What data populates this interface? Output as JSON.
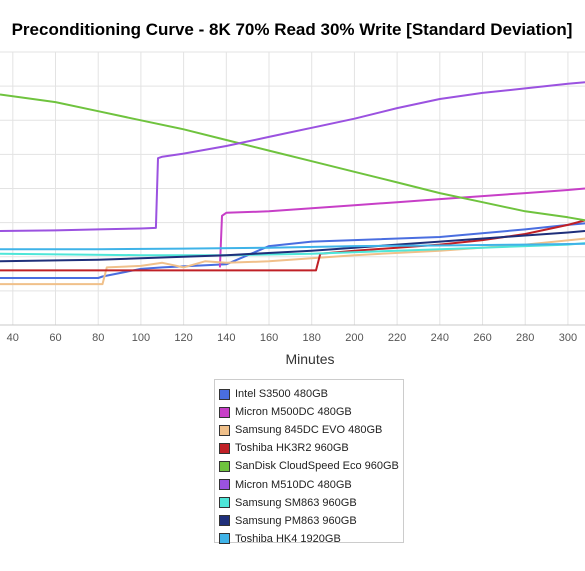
{
  "chart_data": {
    "type": "line",
    "title": "Preconditioning Curve - 8K 70% Read 30% Write [Standard Deviation]",
    "xlabel": "Minutes",
    "ylabel": "",
    "x_ticks": [
      "40",
      "60",
      "80",
      "100",
      "120",
      "140",
      "160",
      "180",
      "200",
      "220",
      "240",
      "260",
      "280",
      "300"
    ],
    "xlim": [
      34,
      308
    ],
    "ylim": [
      0,
      9
    ],
    "grid": true,
    "legend_position": "bottom-center",
    "series": [
      {
        "name": "Intel S3500 480GB",
        "color": "#4a6ee0",
        "x": [
          34,
          80,
          82,
          100,
          110,
          140,
          150,
          160,
          180,
          200,
          240,
          280,
          300,
          308
        ],
        "y": [
          1.55,
          1.55,
          1.6,
          1.85,
          1.9,
          2.0,
          2.3,
          2.6,
          2.75,
          2.8,
          2.9,
          3.15,
          3.3,
          3.35
        ]
      },
      {
        "name": "Micron M500DC 480GB",
        "color": "#c73fc7",
        "x": [
          137,
          138,
          140,
          160,
          180,
          200,
          220,
          240,
          260,
          280,
          300,
          308
        ],
        "y": [
          1.9,
          3.6,
          3.7,
          3.75,
          3.85,
          3.95,
          4.05,
          4.15,
          4.25,
          4.35,
          4.45,
          4.5
        ]
      },
      {
        "name": "Samsung 845DC EVO 480GB",
        "color": "#f0c08a",
        "x": [
          34,
          82,
          84,
          100,
          110,
          120,
          130,
          140,
          160,
          180,
          200,
          240,
          280,
          308
        ],
        "y": [
          1.35,
          1.35,
          1.9,
          1.95,
          2.05,
          1.9,
          2.1,
          2.05,
          2.1,
          2.2,
          2.3,
          2.45,
          2.65,
          2.85
        ]
      },
      {
        "name": "Toshiba HK3R2 960GB",
        "color": "#c02026",
        "x": [
          34,
          100,
          140,
          182,
          184,
          200,
          220,
          240,
          260,
          280,
          300,
          308
        ],
        "y": [
          1.8,
          1.8,
          1.8,
          1.8,
          2.35,
          2.45,
          2.55,
          2.65,
          2.8,
          3.0,
          3.3,
          3.45
        ]
      },
      {
        "name": "SanDisk CloudSpeed Eco 960GB",
        "color": "#6fc33e",
        "x": [
          34,
          60,
          80,
          100,
          120,
          140,
          160,
          180,
          200,
          220,
          240,
          260,
          280,
          300,
          308
        ],
        "y": [
          7.6,
          7.35,
          7.05,
          6.75,
          6.45,
          6.1,
          5.75,
          5.4,
          5.05,
          4.7,
          4.35,
          4.05,
          3.75,
          3.55,
          3.45
        ]
      },
      {
        "name": "Micron M510DC 480GB",
        "color": "#9b52e0",
        "x": [
          34,
          60,
          80,
          100,
          107,
          108,
          110,
          120,
          140,
          160,
          180,
          200,
          220,
          240,
          260,
          280,
          300,
          308
        ],
        "y": [
          3.1,
          3.12,
          3.15,
          3.18,
          3.2,
          5.5,
          5.55,
          5.65,
          5.9,
          6.2,
          6.5,
          6.8,
          7.15,
          7.45,
          7.65,
          7.8,
          7.95,
          8.0
        ]
      },
      {
        "name": "Samsung SM863 960GB",
        "color": "#4ee6d8",
        "x": [
          34,
          100,
          140,
          180,
          220,
          260,
          300,
          308
        ],
        "y": [
          2.35,
          2.3,
          2.3,
          2.35,
          2.45,
          2.55,
          2.65,
          2.7
        ]
      },
      {
        "name": "Samsung PM863 960GB",
        "color": "#1f2f7a",
        "x": [
          34,
          80,
          100,
          140,
          180,
          200,
          240,
          280,
          300,
          308
        ],
        "y": [
          2.1,
          2.15,
          2.2,
          2.3,
          2.45,
          2.55,
          2.75,
          2.95,
          3.05,
          3.1
        ]
      },
      {
        "name": "Toshiba HK4 1920GB",
        "color": "#3fb3e8",
        "x": [
          34,
          80,
          120,
          160,
          200,
          240,
          280,
          308
        ],
        "y": [
          2.5,
          2.5,
          2.52,
          2.55,
          2.6,
          2.62,
          2.65,
          2.68
        ]
      }
    ]
  }
}
